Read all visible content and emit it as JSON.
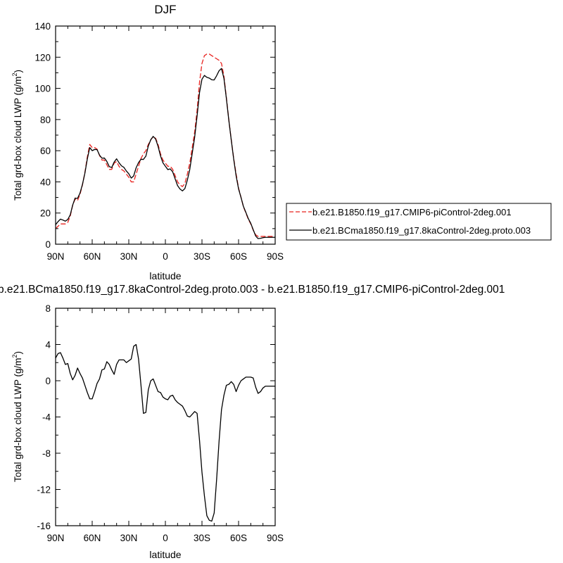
{
  "chart_data": [
    {
      "type": "line",
      "title": "DJF",
      "xlabel": "latitude",
      "ylabel": "Total grd-box cloud LWP (g/m",
      "ylabel_sup": "2",
      "ylabel_end": ")",
      "xlim": [
        -90,
        90
      ],
      "ylim": [
        0,
        140
      ],
      "yticks": [
        0,
        20,
        40,
        60,
        80,
        100,
        120,
        140
      ],
      "xticks": [
        -90,
        -60,
        -30,
        0,
        30,
        60,
        90
      ],
      "xtick_labels": [
        "90N",
        "60N",
        "30N",
        "0",
        "30S",
        "60S",
        "90S"
      ],
      "legend_position": "right",
      "series": [
        {
          "name": "b.e21.B1850.f19_g17.CMIP6-piControl-2deg.001",
          "color": "#e8231f",
          "dashed": true,
          "x": [
            -90,
            -86,
            -82,
            -80,
            -78,
            -76,
            -74,
            -72,
            -70,
            -68,
            -66,
            -64,
            -62,
            -60,
            -58,
            -56,
            -54,
            -52,
            -50,
            -48,
            -46,
            -44,
            -42,
            -40,
            -38,
            -36,
            -34,
            -32,
            -30,
            -28,
            -26,
            -24,
            -22,
            -20,
            -18,
            -16,
            -14,
            -12,
            -10,
            -8,
            -6,
            -4,
            -2,
            0,
            2,
            4,
            6,
            8,
            10,
            12,
            14,
            16,
            18,
            20,
            22,
            24,
            26,
            28,
            30,
            32,
            34,
            36,
            38,
            40,
            42,
            44,
            46,
            48,
            50,
            52,
            54,
            56,
            58,
            60,
            62,
            64,
            66,
            68,
            70,
            72,
            74,
            76,
            78,
            80,
            82,
            84,
            86,
            88,
            90
          ],
          "values": [
            10,
            13,
            13,
            14,
            18,
            25,
            29,
            28,
            32,
            38,
            46,
            56,
            64,
            62,
            62,
            61,
            57,
            54,
            54,
            51,
            48,
            48,
            52,
            53,
            50,
            48,
            47,
            45,
            43,
            40,
            40,
            45,
            50,
            55,
            58,
            60,
            64,
            67,
            69,
            68,
            64,
            58,
            54,
            52,
            50,
            50,
            48,
            44,
            40,
            38,
            37,
            39,
            45,
            52,
            62,
            72,
            86,
            104,
            116,
            121,
            122,
            122,
            121,
            120,
            119,
            118,
            116,
            108,
            94,
            80,
            67,
            55,
            45,
            36,
            30,
            24,
            20,
            16,
            13,
            9,
            6,
            5,
            5,
            5,
            5,
            5,
            5,
            5,
            5
          ],
          "values_src_note": ""
        },
        {
          "name": "b.e21.BCma1850.f19_g17.8kaControl-2deg.proto.003",
          "color": "#000000",
          "dashed": false,
          "x": [],
          "values": []
        }
      ]
    },
    {
      "type": "line",
      "title": "b.e21.BCma1850.f19_g17.8kaControl-2deg.proto.003 - b.e21.B1850.f19_g17.CMIP6-piControl-2deg.001",
      "xlabel": "latitude",
      "ylabel": "Total grd-box cloud LWP (g/m",
      "ylabel_sup": "2",
      "ylabel_end": ")",
      "xlim": [
        -90,
        90
      ],
      "ylim": [
        -16,
        8
      ],
      "yticks": [
        -16,
        -12,
        -8,
        -4,
        0,
        4,
        8
      ],
      "xticks": [
        -90,
        -60,
        -30,
        0,
        30,
        60,
        90
      ],
      "xtick_labels": [
        "90N",
        "60N",
        "30N",
        "0",
        "30S",
        "60S",
        "90S"
      ],
      "series": [
        {
          "color": "#000000",
          "x": [
            -90,
            -88,
            -86,
            -84,
            -82,
            -80,
            -78,
            -76,
            -74,
            -72,
            -70,
            -68,
            -66,
            -64,
            -62,
            -60,
            -58,
            -56,
            -54,
            -52,
            -50,
            -48,
            -46,
            -44,
            -42,
            -40,
            -38,
            -36,
            -34,
            -32,
            -30,
            -28,
            -26,
            -24,
            -22,
            -20,
            -18,
            -16,
            -14,
            -12,
            -10,
            -8,
            -6,
            -4,
            -2,
            0,
            2,
            4,
            6,
            8,
            10,
            12,
            14,
            16,
            18,
            20,
            22,
            24,
            26,
            28,
            30,
            32,
            34,
            36,
            38,
            40,
            42,
            44,
            46,
            48,
            50,
            52,
            54,
            56,
            58,
            60,
            62,
            64,
            66,
            68,
            70,
            72,
            74,
            76,
            78,
            80,
            82,
            84,
            86,
            88,
            90
          ],
          "values": [
            2.5,
            3.0,
            3.1,
            2.5,
            1.8,
            1.9,
            0.8,
            0.1,
            0.6,
            1.4,
            0.8,
            0.3,
            -0.5,
            -1.3,
            -2.0,
            -2.0,
            -1.2,
            -0.3,
            0.2,
            1.2,
            1.3,
            2.1,
            1.8,
            1.2,
            0.7,
            1.8,
            2.3,
            2.3,
            2.3,
            2.0,
            2.2,
            2.4,
            3.8,
            4.0,
            2.4,
            -0.5,
            -3.6,
            -3.5,
            -1.0,
            0.0,
            0.2,
            -0.5,
            -1.2,
            -1.3,
            -1.8,
            -2.0,
            -2.1,
            -1.7,
            -1.6,
            -2.1,
            -2.4,
            -2.6,
            -2.8,
            -3.3,
            -3.9,
            -4.0,
            -3.7,
            -3.4,
            -3.6,
            -6.6,
            -10.1,
            -12.7,
            -14.9,
            -15.4,
            -15.5,
            -14.6,
            -10.9,
            -6.7,
            -3.2,
            -1.6,
            -0.5,
            -0.4,
            -0.1,
            -0.4,
            -1.2,
            -0.5,
            0.0,
            0.2,
            0.4,
            0.4,
            0.4,
            0.3,
            -0.7,
            -1.4,
            -1.2,
            -0.8,
            -0.6,
            -0.6,
            -0.6,
            -0.6,
            -0.6
          ]
        }
      ]
    }
  ]
}
